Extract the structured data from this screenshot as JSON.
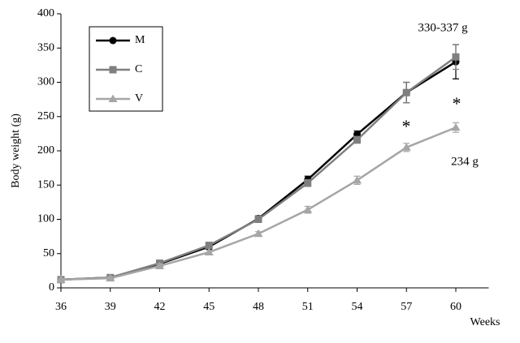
{
  "chart_data": {
    "type": "line",
    "x": [
      36,
      39,
      42,
      45,
      48,
      51,
      54,
      57,
      60
    ],
    "xlim": [
      36,
      62
    ],
    "xticks": [
      36,
      39,
      42,
      45,
      48,
      51,
      54,
      57,
      60
    ],
    "ylim": [
      0,
      400
    ],
    "yticks": [
      0,
      50,
      100,
      150,
      200,
      250,
      300,
      350,
      400
    ],
    "x_label": "Weeks",
    "y_label": "Body weight (g)",
    "series": [
      {
        "name": "M",
        "color": "#000000",
        "marker": "circle",
        "values": [
          12,
          15,
          35,
          60,
          101,
          158,
          224,
          285,
          330
        ],
        "errors": [
          2,
          2,
          3,
          4,
          4,
          5,
          5,
          15,
          25
        ]
      },
      {
        "name": "C",
        "color": "#7f7f7f",
        "marker": "square",
        "values": [
          12,
          15,
          36,
          62,
          100,
          153,
          216,
          285,
          337
        ],
        "errors": [
          2,
          2,
          3,
          4,
          4,
          5,
          5,
          15,
          18
        ]
      },
      {
        "name": "V",
        "color": "#a6a6a6",
        "marker": "triangle",
        "values": [
          12,
          14,
          32,
          52,
          79,
          114,
          157,
          205,
          234
        ],
        "errors": [
          2,
          2,
          3,
          3,
          3,
          5,
          6,
          6,
          7
        ]
      }
    ],
    "annotations": [
      "330-337 g",
      "*",
      "*",
      "234 g"
    ]
  }
}
